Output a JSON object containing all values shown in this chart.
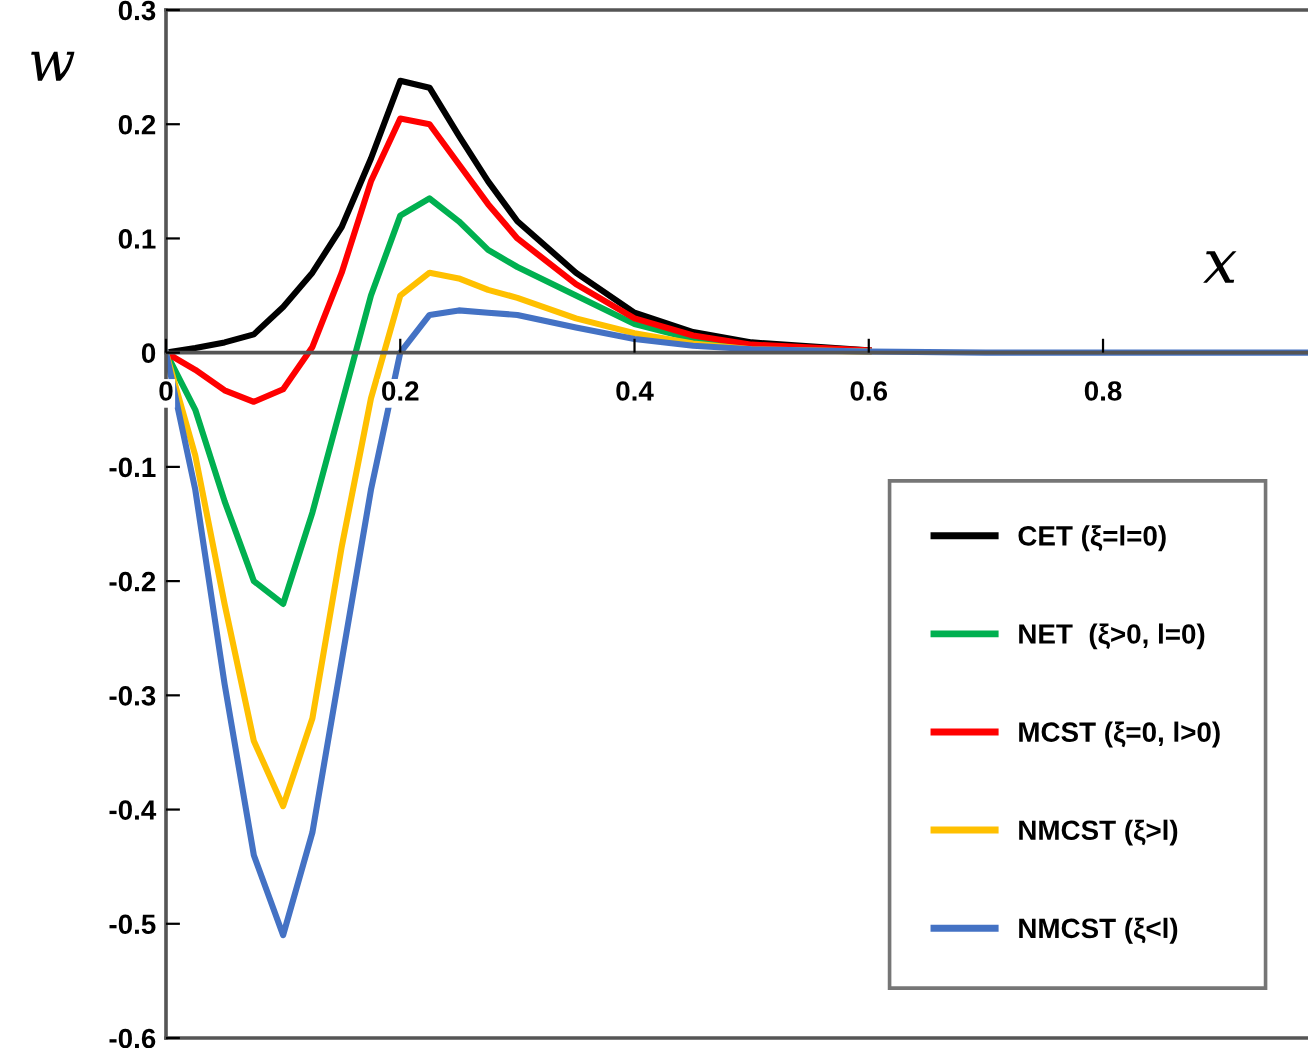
{
  "chart_data": {
    "type": "line",
    "xlabel": "x",
    "ylabel": "w",
    "x": [
      0,
      0.025,
      0.05,
      0.075,
      0.1,
      0.125,
      0.15,
      0.175,
      0.2,
      0.225,
      0.25,
      0.275,
      0.3,
      0.35,
      0.4,
      0.45,
      0.5,
      0.6,
      0.7,
      0.8,
      0.9,
      0.975
    ],
    "series": [
      {
        "name": "CET (ξ=l=0)",
        "color": "#000000",
        "values": [
          0,
          0.004,
          0.009,
          0.016,
          0.04,
          0.07,
          0.11,
          0.17,
          0.238,
          0.232,
          0.19,
          0.15,
          0.115,
          0.07,
          0.035,
          0.018,
          0.009,
          0.002,
          null,
          null,
          null,
          null
        ]
      },
      {
        "name": "NET  (ξ>0, l=0)",
        "color": "#00b050",
        "values": [
          0,
          -0.05,
          -0.13,
          -0.2,
          -0.22,
          -0.14,
          -0.045,
          0.05,
          0.12,
          0.135,
          0.115,
          0.09,
          0.075,
          0.05,
          0.025,
          0.012,
          0.005,
          null,
          null,
          null,
          null,
          null
        ]
      },
      {
        "name": "MCST (ξ=0, l>0)",
        "color": "#ff0000",
        "values": [
          0,
          -0.015,
          -0.033,
          -0.043,
          -0.032,
          0.005,
          0.07,
          0.15,
          0.205,
          0.2,
          0.165,
          0.13,
          0.1,
          0.06,
          0.03,
          0.015,
          0.007,
          0.002,
          null,
          null,
          null,
          null
        ]
      },
      {
        "name": "NMCST (ξ>l)",
        "color": "#ffc000",
        "values": [
          0,
          -0.09,
          -0.22,
          -0.34,
          -0.397,
          -0.32,
          -0.17,
          -0.04,
          0.05,
          0.07,
          0.065,
          0.055,
          0.048,
          0.03,
          0.017,
          0.008,
          0.003,
          0.001,
          null,
          null,
          null,
          null
        ]
      },
      {
        "name": "NMCST (ξ<l)",
        "color": "#4472c4",
        "values": [
          0,
          -0.12,
          -0.29,
          -0.44,
          -0.51,
          -0.42,
          -0.27,
          -0.12,
          0.0,
          0.033,
          0.037,
          0.035,
          0.033,
          0.022,
          0.012,
          0.006,
          0.003,
          0.001,
          0,
          0,
          0,
          0
        ]
      }
    ],
    "xlim": [
      0,
      0.975
    ],
    "ylim": [
      -0.6,
      0.3
    ],
    "xticks": [
      0,
      0.2,
      0.4,
      0.6,
      0.8
    ],
    "yticks": [
      -0.6,
      -0.5,
      -0.4,
      -0.3,
      -0.2,
      -0.1,
      0,
      0.1,
      0.2,
      0.3
    ],
    "grid": false,
    "legend": "bottom right",
    "marker": "none",
    "line_style": "solid"
  }
}
